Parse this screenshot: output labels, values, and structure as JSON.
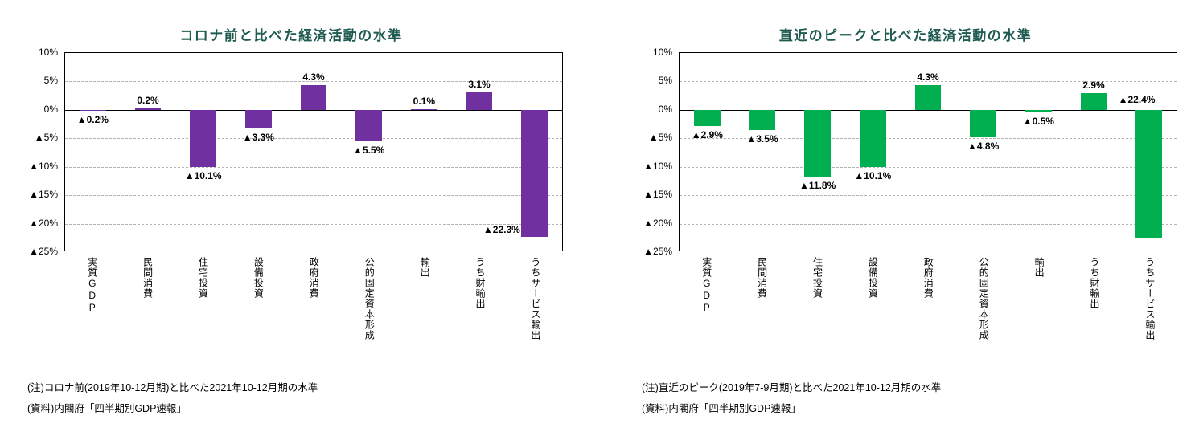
{
  "page": {
    "background": "#ffffff"
  },
  "chart_data": [
    {
      "type": "bar",
      "title": "コロナ前と比べた経済活動の水準",
      "title_color": "#1f5b50",
      "bar_color": "#7030A0",
      "categories": [
        "実質GDP",
        "民間消費",
        "住宅投資",
        "設備投資",
        "政府消費",
        "公的固定資本形成",
        "輸出",
        "うち財輸出",
        "うちサービス輸出"
      ],
      "values": [
        -0.2,
        0.2,
        -10.1,
        -3.3,
        4.3,
        -5.5,
        0.1,
        3.1,
        -22.3
      ],
      "value_labels": [
        "▲0.2%",
        "0.2%",
        "▲10.1%",
        "▲3.3%",
        "4.3%",
        "▲5.5%",
        "0.1%",
        "3.1%",
        "▲22.3%"
      ],
      "ylim": [
        -25,
        10
      ],
      "yticks": [
        {
          "value": 10,
          "label": "10%"
        },
        {
          "value": 5,
          "label": "5%"
        },
        {
          "value": 0,
          "label": "0%"
        },
        {
          "value": -5,
          "label": "▲5%"
        },
        {
          "value": -10,
          "label": "▲10%"
        },
        {
          "value": -15,
          "label": "▲15%"
        },
        {
          "value": -20,
          "label": "▲20%"
        },
        {
          "value": -25,
          "label": "▲25%"
        }
      ],
      "grid": "dashed-horizontal",
      "legend": "none",
      "overflow_label_placement": "beside-bottom",
      "note": "(注)コロナ前(2019年10-12月期)と比べた2021年10-12月期の水準",
      "source": "(資料)内閣府「四半期別GDP速報」"
    },
    {
      "type": "bar",
      "title": "直近のピークと比べた経済活動の水準",
      "title_color": "#1f5b50",
      "bar_color": "#00B050",
      "categories": [
        "実質GDP",
        "民間消費",
        "住宅投資",
        "設備投資",
        "政府消費",
        "公的固定資本形成",
        "輸出",
        "うち財輸出",
        "うちサービス輸出"
      ],
      "values": [
        -2.9,
        -3.5,
        -11.8,
        -10.1,
        4.3,
        -4.8,
        -0.5,
        2.9,
        -22.4
      ],
      "value_labels": [
        "▲2.9%",
        "▲3.5%",
        "▲11.8%",
        "▲10.1%",
        "4.3%",
        "▲4.8%",
        "▲0.5%",
        "2.9%",
        "▲22.4%"
      ],
      "ylim": [
        -25,
        10
      ],
      "yticks": [
        {
          "value": 10,
          "label": "10%"
        },
        {
          "value": 5,
          "label": "5%"
        },
        {
          "value": 0,
          "label": "0%"
        },
        {
          "value": -5,
          "label": "▲5%"
        },
        {
          "value": -10,
          "label": "▲10%"
        },
        {
          "value": -15,
          "label": "▲15%"
        },
        {
          "value": -20,
          "label": "▲20%"
        },
        {
          "value": -25,
          "label": "▲25%"
        }
      ],
      "grid": "dashed-horizontal",
      "legend": "none",
      "overflow_label_placement": "above-zero",
      "note": "(注)直近のピーク(2019年7-9月期)と比べた2021年10-12月期の水準",
      "source": "(資料)内閣府「四半期別GDP速報」"
    }
  ]
}
